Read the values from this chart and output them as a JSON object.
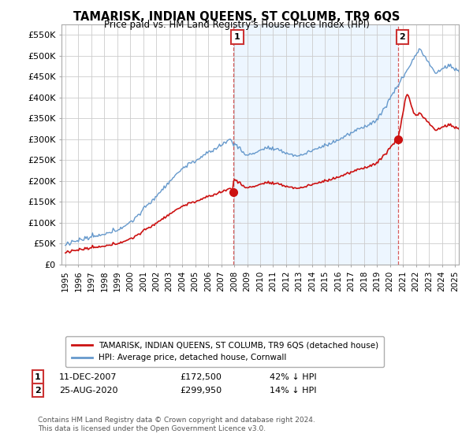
{
  "title": "TAMARISK, INDIAN QUEENS, ST COLUMB, TR9 6QS",
  "subtitle": "Price paid vs. HM Land Registry's House Price Index (HPI)",
  "ylim": [
    0,
    575000
  ],
  "yticks": [
    0,
    50000,
    100000,
    150000,
    200000,
    250000,
    300000,
    350000,
    400000,
    450000,
    500000,
    550000
  ],
  "hpi_color": "#6699cc",
  "hpi_fill_color": "#ddeeff",
  "price_color": "#cc1111",
  "marker1_x": 2007.94,
  "marker1_y": 172500,
  "marker2_x": 2020.65,
  "marker2_y": 299950,
  "legend_line1": "TAMARISK, INDIAN QUEENS, ST COLUMB, TR9 6QS (detached house)",
  "legend_line2": "HPI: Average price, detached house, Cornwall",
  "vline1_x": 2007.94,
  "vline2_x": 2020.65,
  "xmin": 1994.7,
  "xmax": 2025.3,
  "background_color": "#ffffff",
  "grid_color": "#cccccc",
  "shade_color": "#ddeeff"
}
